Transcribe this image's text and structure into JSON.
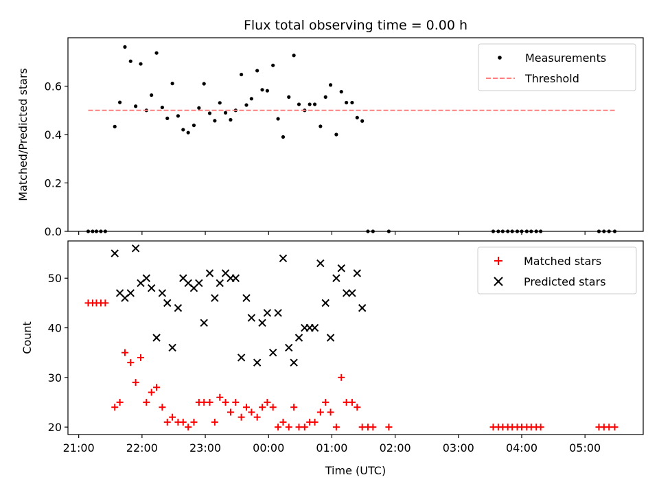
{
  "chart_data": [
    {
      "type": "scatter",
      "title": "Flux total observing time = 0.00 h",
      "xlabel": "",
      "ylabel": "Matched/Predicted stars",
      "xlim": [
        20.83,
        29.92
      ],
      "ylim": [
        0.0,
        0.8
      ],
      "ytick_labels": [
        "0.0",
        "0.2",
        "0.4",
        "0.6"
      ],
      "legend_position": "top-right",
      "grid": false,
      "series": [
        {
          "name": "Measurements",
          "kind": "scatter",
          "color": "#000000",
          "points": [
            [
              21.15,
              0.0
            ],
            [
              21.22,
              0.0
            ],
            [
              21.28,
              0.0
            ],
            [
              21.35,
              0.0
            ],
            [
              21.42,
              0.0
            ],
            [
              21.57,
              0.433
            ],
            [
              21.65,
              0.533
            ],
            [
              21.73,
              0.762
            ],
            [
              21.82,
              0.703
            ],
            [
              21.9,
              0.517
            ],
            [
              21.98,
              0.692
            ],
            [
              22.07,
              0.5
            ],
            [
              22.15,
              0.563
            ],
            [
              22.23,
              0.737
            ],
            [
              22.32,
              0.512
            ],
            [
              22.4,
              0.467
            ],
            [
              22.48,
              0.611
            ],
            [
              22.57,
              0.477
            ],
            [
              22.65,
              0.42
            ],
            [
              22.73,
              0.408
            ],
            [
              22.82,
              0.438
            ],
            [
              22.9,
              0.51
            ],
            [
              22.98,
              0.61
            ],
            [
              23.07,
              0.488
            ],
            [
              23.15,
              0.457
            ],
            [
              23.23,
              0.531
            ],
            [
              23.32,
              0.49
            ],
            [
              23.4,
              0.461
            ],
            [
              23.48,
              0.5
            ],
            [
              23.57,
              0.648
            ],
            [
              23.65,
              0.522
            ],
            [
              23.73,
              0.548
            ],
            [
              23.82,
              0.664
            ],
            [
              23.9,
              0.585
            ],
            [
              23.98,
              0.581
            ],
            [
              24.07,
              0.686
            ],
            [
              24.15,
              0.465
            ],
            [
              24.23,
              0.39
            ],
            [
              24.32,
              0.555
            ],
            [
              24.4,
              0.727
            ],
            [
              24.48,
              0.525
            ],
            [
              24.57,
              0.5
            ],
            [
              24.65,
              0.525
            ],
            [
              24.73,
              0.525
            ],
            [
              24.82,
              0.434
            ],
            [
              24.9,
              0.555
            ],
            [
              24.98,
              0.605
            ],
            [
              25.07,
              0.4
            ],
            [
              25.15,
              0.577
            ],
            [
              25.23,
              0.532
            ],
            [
              25.32,
              0.532
            ],
            [
              25.4,
              0.47
            ],
            [
              25.48,
              0.456
            ],
            [
              25.57,
              0.0
            ],
            [
              25.65,
              0.0
            ],
            [
              25.9,
              0.0
            ],
            [
              27.55,
              0.0
            ],
            [
              27.63,
              0.0
            ],
            [
              27.7,
              0.0
            ],
            [
              27.78,
              0.0
            ],
            [
              27.85,
              0.0
            ],
            [
              27.93,
              0.0
            ],
            [
              28.0,
              0.0
            ],
            [
              28.08,
              0.0
            ],
            [
              28.15,
              0.0
            ],
            [
              28.23,
              0.0
            ],
            [
              28.3,
              0.0
            ],
            [
              29.22,
              0.0
            ],
            [
              29.3,
              0.0
            ],
            [
              29.38,
              0.0
            ],
            [
              29.47,
              0.0
            ]
          ]
        },
        {
          "name": "Threshold",
          "kind": "dashed-line",
          "color": "#ff7f7f",
          "points": [
            [
              21.15,
              0.5
            ],
            [
              29.47,
              0.5
            ]
          ]
        }
      ]
    },
    {
      "type": "scatter",
      "title": "",
      "xlabel": "Time (UTC)",
      "ylabel": "Count",
      "xlim": [
        20.83,
        29.92
      ],
      "ylim": [
        18.5,
        57.5
      ],
      "ytick_labels": [
        "20",
        "30",
        "40",
        "50"
      ],
      "xtick_labels": [
        "21:00",
        "22:00",
        "23:00",
        "00:00",
        "01:00",
        "02:00",
        "03:00",
        "04:00",
        "05:00"
      ],
      "legend_position": "top-right",
      "grid": false,
      "series": [
        {
          "name": "Matched stars",
          "kind": "plus",
          "color": "#ff0000",
          "points": [
            [
              21.15,
              45
            ],
            [
              21.22,
              45
            ],
            [
              21.28,
              45
            ],
            [
              21.35,
              45
            ],
            [
              21.42,
              45
            ],
            [
              21.57,
              24
            ],
            [
              21.65,
              25
            ],
            [
              21.73,
              35
            ],
            [
              21.82,
              33
            ],
            [
              21.9,
              29
            ],
            [
              21.98,
              34
            ],
            [
              22.07,
              25
            ],
            [
              22.15,
              27
            ],
            [
              22.23,
              28
            ],
            [
              22.32,
              24
            ],
            [
              22.4,
              21
            ],
            [
              22.48,
              22
            ],
            [
              22.57,
              21
            ],
            [
              22.65,
              21
            ],
            [
              22.73,
              20
            ],
            [
              22.82,
              21
            ],
            [
              22.9,
              25
            ],
            [
              22.98,
              25
            ],
            [
              23.07,
              25
            ],
            [
              23.15,
              21
            ],
            [
              23.23,
              26
            ],
            [
              23.32,
              25
            ],
            [
              23.4,
              23
            ],
            [
              23.48,
              25
            ],
            [
              23.57,
              22
            ],
            [
              23.65,
              24
            ],
            [
              23.73,
              23
            ],
            [
              23.82,
              22
            ],
            [
              23.9,
              24
            ],
            [
              23.98,
              25
            ],
            [
              24.07,
              24
            ],
            [
              24.15,
              20
            ],
            [
              24.23,
              21
            ],
            [
              24.32,
              20
            ],
            [
              24.4,
              24
            ],
            [
              24.48,
              20
            ],
            [
              24.57,
              20
            ],
            [
              24.65,
              21
            ],
            [
              24.73,
              21
            ],
            [
              24.82,
              23
            ],
            [
              24.9,
              25
            ],
            [
              24.98,
              23
            ],
            [
              25.07,
              20
            ],
            [
              25.15,
              30
            ],
            [
              25.23,
              25
            ],
            [
              25.32,
              25
            ],
            [
              25.4,
              24
            ],
            [
              25.48,
              20
            ],
            [
              25.57,
              20
            ],
            [
              25.65,
              20
            ],
            [
              25.9,
              20
            ],
            [
              27.55,
              20
            ],
            [
              27.63,
              20
            ],
            [
              27.7,
              20
            ],
            [
              27.78,
              20
            ],
            [
              27.85,
              20
            ],
            [
              27.93,
              20
            ],
            [
              28.0,
              20
            ],
            [
              28.08,
              20
            ],
            [
              28.15,
              20
            ],
            [
              28.23,
              20
            ],
            [
              28.3,
              20
            ],
            [
              29.22,
              20
            ],
            [
              29.3,
              20
            ],
            [
              29.38,
              20
            ],
            [
              29.47,
              20
            ]
          ]
        },
        {
          "name": "Predicted stars",
          "kind": "x",
          "color": "#000000",
          "points": [
            [
              21.57,
              55
            ],
            [
              21.65,
              47
            ],
            [
              21.73,
              46
            ],
            [
              21.82,
              47
            ],
            [
              21.9,
              56
            ],
            [
              21.98,
              49
            ],
            [
              22.07,
              50
            ],
            [
              22.15,
              48
            ],
            [
              22.23,
              38
            ],
            [
              22.32,
              47
            ],
            [
              22.4,
              45
            ],
            [
              22.48,
              36
            ],
            [
              22.57,
              44
            ],
            [
              22.65,
              50
            ],
            [
              22.73,
              49
            ],
            [
              22.82,
              48
            ],
            [
              22.9,
              49
            ],
            [
              22.98,
              41
            ],
            [
              23.07,
              51
            ],
            [
              23.15,
              46
            ],
            [
              23.23,
              49
            ],
            [
              23.32,
              51
            ],
            [
              23.4,
              50
            ],
            [
              23.48,
              50
            ],
            [
              23.57,
              34
            ],
            [
              23.65,
              46
            ],
            [
              23.73,
              42
            ],
            [
              23.82,
              33
            ],
            [
              23.9,
              41
            ],
            [
              23.98,
              43
            ],
            [
              24.07,
              35
            ],
            [
              24.15,
              43
            ],
            [
              24.23,
              54
            ],
            [
              24.32,
              36
            ],
            [
              24.4,
              33
            ],
            [
              24.48,
              38
            ],
            [
              24.57,
              40
            ],
            [
              24.65,
              40
            ],
            [
              24.73,
              40
            ],
            [
              24.82,
              53
            ],
            [
              24.9,
              45
            ],
            [
              24.98,
              38
            ],
            [
              25.07,
              50
            ],
            [
              25.15,
              52
            ],
            [
              25.23,
              47
            ],
            [
              25.32,
              47
            ],
            [
              25.4,
              51
            ],
            [
              25.48,
              44
            ]
          ]
        }
      ]
    }
  ]
}
